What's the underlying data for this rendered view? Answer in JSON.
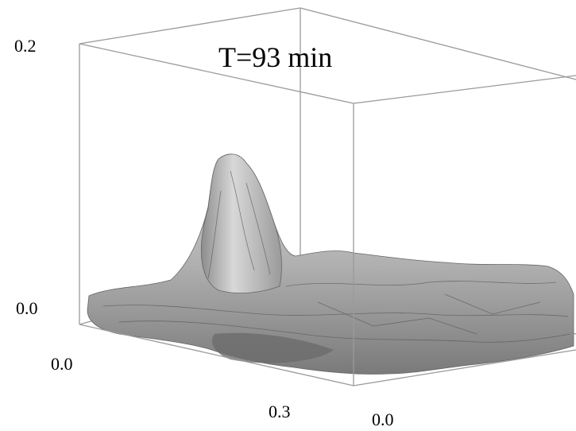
{
  "title": "T=93 min",
  "axis_labels": {
    "z_top": "0.2",
    "z_bottom": "0.0",
    "x_start": "0.0",
    "x_end": "0.3",
    "y_start": "0.0"
  }
}
